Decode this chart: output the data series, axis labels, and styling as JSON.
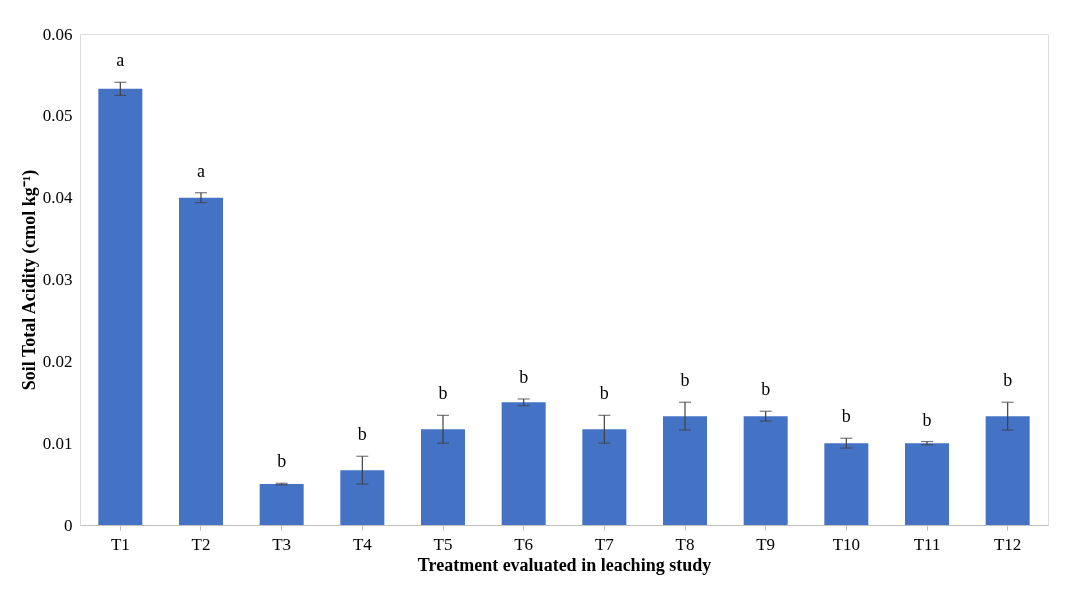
{
  "chart_data": {
    "type": "bar",
    "xlabel": "Treatment evaluated in leaching study",
    "ylabel": "Soil Total Acidity (cmol kg⁻¹)",
    "categories": [
      "T1",
      "T2",
      "T3",
      "T4",
      "T5",
      "T6",
      "T7",
      "T8",
      "T9",
      "T10",
      "T11",
      "T12"
    ],
    "values": [
      0.0533,
      0.04,
      0.005,
      0.0067,
      0.0117,
      0.015,
      0.0117,
      0.0133,
      0.0133,
      0.01,
      0.01,
      0.0133
    ],
    "errors": [
      0.0008,
      0.0006,
      0.0001,
      0.0017,
      0.0017,
      0.0004,
      0.0017,
      0.0017,
      0.0006,
      0.0006,
      0.0002,
      0.0017
    ],
    "color": "#4472c4",
    "ylim": [
      0,
      0.06
    ],
    "yticks": [
      {
        "value": 0,
        "label": "0"
      },
      0.01,
      0.02,
      0.03,
      0.04,
      0.05,
      0.06
    ],
    "grid": false,
    "annotations": [
      {
        "text": "a",
        "x": "T1",
        "y": 0.0541
      },
      {
        "text": "a",
        "x": "T2",
        "y": 0.0406
      },
      {
        "text": "b",
        "x": "T3",
        "y": 0.0051
      },
      {
        "text": "b",
        "x": "T4",
        "y": 0.0084
      },
      {
        "text": "b",
        "x": "T5",
        "y": 0.0134
      },
      {
        "text": "b",
        "x": "T6",
        "y": 0.0154
      },
      {
        "text": "b",
        "x": "T7",
        "y": 0.0134
      },
      {
        "text": "b",
        "x": "T8",
        "y": 0.015
      },
      {
        "text": "b",
        "x": "T9",
        "y": 0.0139
      },
      {
        "text": "b",
        "x": "T10",
        "y": 0.0106
      },
      {
        "text": "b",
        "x": "T11",
        "y": 0.0102
      },
      {
        "text": "b",
        "x": "T12",
        "y": 0.015
      }
    ]
  }
}
